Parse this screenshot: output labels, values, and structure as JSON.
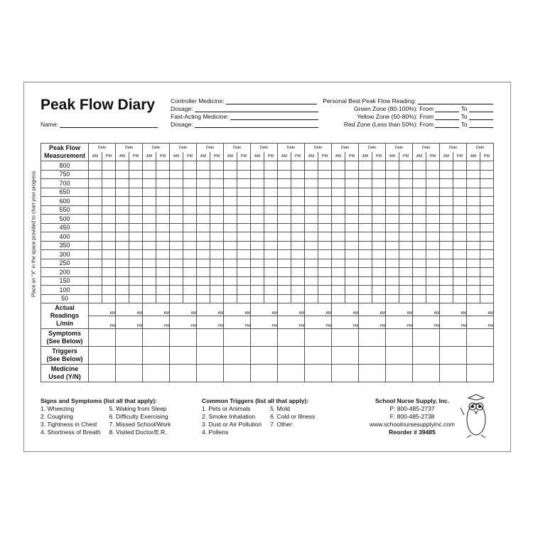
{
  "title": "Peak Flow Diary",
  "name_label": "Name:",
  "medicine": {
    "controller": "Controller Medicine:",
    "dosage1": "Dosage:",
    "fast_acting": "Fast-Acting Medicine:",
    "dosage2": "Dosage:"
  },
  "zones": {
    "personal_best": "Personal Best Peak Flow Reading:",
    "green": "Green Zone (80-100%):",
    "yellow": "Yellow Zone (50-80%):",
    "red": "Red Zone (Less than 50%):",
    "from": "From",
    "to": "To"
  },
  "vertical_note": "Place an \"X\" in the space provided to chart your progress.",
  "table": {
    "header_label_1": "Peak Flow",
    "header_label_2": "Measurement",
    "date_label": "Date",
    "am": "AM",
    "pm": "PM",
    "day_count": 15,
    "values": [
      "800",
      "750",
      "700",
      "650",
      "600",
      "550",
      "500",
      "450",
      "400",
      "350",
      "300",
      "250",
      "200",
      "150",
      "100",
      "50"
    ],
    "actual_label": [
      "Actual",
      "Readings",
      "L/min"
    ],
    "symptoms_label": [
      "Symptoms",
      "(See Below)"
    ],
    "triggers_label": [
      "Triggers",
      "(See Below)"
    ],
    "medicine_label": [
      "Medicine",
      "Used (Y/N)"
    ]
  },
  "footer": {
    "symptoms_title": "Signs and Symptoms (list all that apply):",
    "symptoms": [
      "1. Wheezing",
      "2. Coughing",
      "3. Tightness in Chest",
      "4. Shortness of Breath",
      "5. Waking from Sleep",
      "6. Difficulty Exercising",
      "7. Missed School/Work",
      "8. Visited Doctor/E.R."
    ],
    "triggers_title": "Common Triggers (list all that apply):",
    "triggers": [
      "1. Pets or Animals",
      "2. Smoke Inhalation",
      "3. Dust or Air Pollution",
      "4. Pollens",
      "5. Mold",
      "6. Cold or Illness",
      "7. Other:"
    ],
    "company": "School Nurse Supply, Inc.",
    "phone": "P:  800-485-2737",
    "fax": "F:  800-485-2738",
    "website": "www.schoolnursesupplyinc.com",
    "reorder": "Reorder # 39485"
  }
}
